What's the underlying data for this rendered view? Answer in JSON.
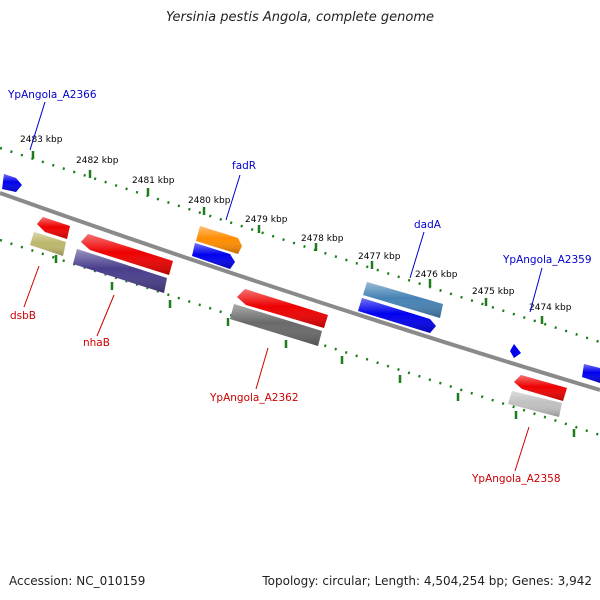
{
  "title": "Yersinia pestis Angola, complete genome",
  "accession": "Accession: NC_010159",
  "topology": "Topology: circular; Length: 4,504,254 bp; Genes: 3,942",
  "colors": {
    "backbone": "#808080",
    "ticks": "#1b7d1b",
    "forward_label": "#0000cc",
    "reverse_label": "#cc0000",
    "blue_cds": "#0000ee",
    "red_cds": "#ee0000"
  },
  "ruler_labels": [
    "2483 kbp",
    "2482 kbp",
    "2481 kbp",
    "2480 kbp",
    "2479 kbp",
    "2478 kbp",
    "2477 kbp",
    "2476 kbp",
    "2475 kbp",
    "2474 kbp"
  ],
  "genes": [
    {
      "id": "f0",
      "label": "",
      "strand": "+",
      "color": "#0000ee"
    },
    {
      "id": "fadR",
      "label": "fadR",
      "strand": "+",
      "color": "#ff8c00"
    },
    {
      "id": "fadR-cds",
      "label": "",
      "strand": "+",
      "color": "#0000ee"
    },
    {
      "id": "dadA",
      "label": "dadA",
      "strand": "+",
      "color": "#4682b4"
    },
    {
      "id": "dadA-cds",
      "label": "",
      "strand": "+",
      "color": "#0000ee"
    },
    {
      "id": "A2359",
      "label": "YpAngola_A2359",
      "strand": "+",
      "color": "#0000ee"
    },
    {
      "id": "A2366",
      "label": "YpAngola_A2366",
      "strand": "+",
      "color": "#0000ee"
    },
    {
      "id": "f-end",
      "label": "",
      "strand": "+",
      "color": "#0000ee"
    },
    {
      "id": "dsbB-cds",
      "label": "",
      "strand": "-",
      "color": "#ee0000"
    },
    {
      "id": "dsbB",
      "label": "dsbB",
      "strand": "-",
      "color": "#bdb76b"
    },
    {
      "id": "nhaB-cds",
      "label": "",
      "strand": "-",
      "color": "#ee0000"
    },
    {
      "id": "nhaB",
      "label": "nhaB",
      "strand": "-",
      "color": "#483d8b"
    },
    {
      "id": "A2362-cds",
      "label": "",
      "strand": "-",
      "color": "#ee0000"
    },
    {
      "id": "A2362",
      "label": "YpAngola_A2362",
      "strand": "-",
      "color": "#696969"
    },
    {
      "id": "A2358-cds",
      "label": "",
      "strand": "-",
      "color": "#ee0000"
    },
    {
      "id": "A2358",
      "label": "YpAngola_A2358",
      "strand": "-",
      "color": "#c0c0c0"
    }
  ]
}
